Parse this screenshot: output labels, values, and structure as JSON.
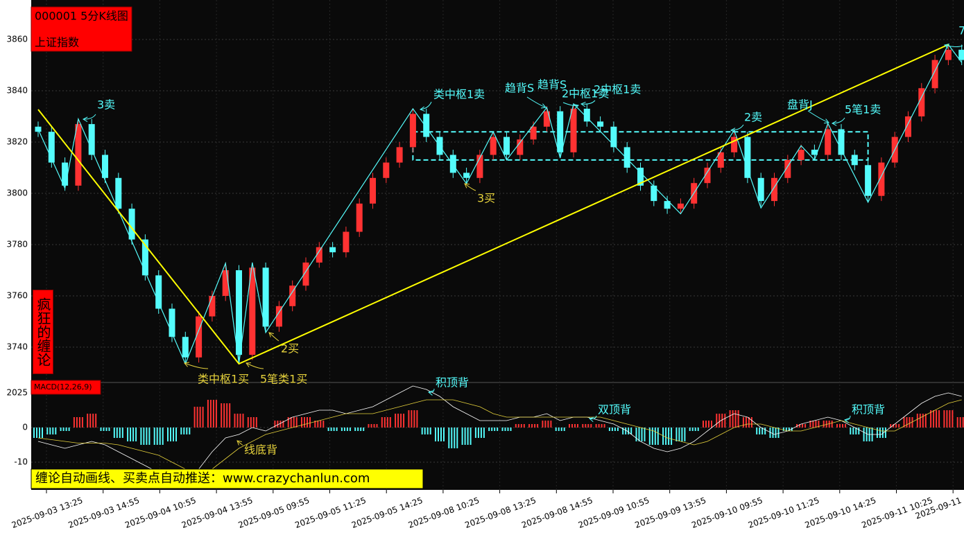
{
  "header": {
    "code_title": "000001 5分K线图",
    "name": "上证指数"
  },
  "side_label": "疯狂的缠论",
  "footer_banner": "缠论自动画线、买卖点自动推送：www.crazychanlun.com",
  "chart_data": [
    {
      "type": "candlestick",
      "open": [
        3826,
        3824,
        3812,
        3803,
        3827,
        3815,
        3806,
        3794,
        3782,
        3768,
        3755,
        3744,
        3736,
        3752,
        3760,
        3770,
        3737,
        3771,
        3748,
        3756,
        3764,
        3773,
        3779,
        3777,
        3785,
        3796,
        3806,
        3812,
        3818,
        3831,
        3822,
        3815,
        3808,
        3806,
        3815,
        3822,
        3815,
        3821,
        3826,
        3832,
        3816,
        3833,
        3828,
        3826,
        3818,
        3810,
        3803,
        3797,
        3794,
        3796,
        3804,
        3810,
        3816,
        3822,
        3806,
        3797,
        3806,
        3813,
        3817,
        3815,
        3825,
        3815,
        3811,
        3799,
        3812,
        3822,
        3830,
        3841,
        3852,
        3856
      ],
      "high": [
        3828,
        3826,
        3814,
        3829,
        3829,
        3817,
        3808,
        3796,
        3784,
        3770,
        3757,
        3746,
        3754,
        3762,
        3773,
        3772,
        3773,
        3773,
        3758,
        3766,
        3775,
        3781,
        3781,
        3787,
        3798,
        3808,
        3814,
        3820,
        3833,
        3833,
        3824,
        3817,
        3810,
        3817,
        3824,
        3824,
        3823,
        3828,
        3834,
        3834,
        3835,
        3835,
        3830,
        3828,
        3820,
        3812,
        3805,
        3799,
        3798,
        3806,
        3812,
        3818,
        3825,
        3824,
        3808,
        3808,
        3815,
        3819,
        3819,
        3827,
        3827,
        3817,
        3813,
        3814,
        3824,
        3832,
        3843,
        3854,
        3858,
        3858
      ],
      "low": [
        3822,
        3810,
        3801,
        3801,
        3813,
        3804,
        3792,
        3780,
        3766,
        3753,
        3742,
        3734,
        3734,
        3750,
        3758,
        3734,
        3735,
        3746,
        3746,
        3754,
        3762,
        3771,
        3775,
        3775,
        3783,
        3794,
        3804,
        3810,
        3816,
        3820,
        3813,
        3806,
        3804,
        3804,
        3813,
        3813,
        3813,
        3819,
        3824,
        3814,
        3814,
        3826,
        3824,
        3816,
        3808,
        3801,
        3795,
        3792,
        3792,
        3794,
        3802,
        3808,
        3814,
        3804,
        3795,
        3795,
        3804,
        3811,
        3813,
        3813,
        3813,
        3809,
        3797,
        3797,
        3810,
        3820,
        3828,
        3839,
        3850,
        3850
      ],
      "close": [
        3824,
        3812,
        3803,
        3827,
        3815,
        3806,
        3794,
        3782,
        3768,
        3755,
        3744,
        3736,
        3752,
        3760,
        3770,
        3737,
        3771,
        3748,
        3756,
        3764,
        3773,
        3779,
        3777,
        3785,
        3796,
        3806,
        3812,
        3818,
        3831,
        3822,
        3815,
        3808,
        3806,
        3815,
        3822,
        3815,
        3821,
        3826,
        3832,
        3816,
        3833,
        3828,
        3826,
        3818,
        3810,
        3803,
        3797,
        3794,
        3796,
        3804,
        3810,
        3816,
        3822,
        3806,
        3797,
        3806,
        3813,
        3817,
        3815,
        3825,
        3815,
        3811,
        3799,
        3812,
        3822,
        3830,
        3841,
        3852,
        3856,
        3852
      ],
      "up_color": "#ff3232",
      "down_color": "#54fcfc",
      "ylim": [
        3727.3,
        3875.4
      ],
      "yticks": [
        3740,
        3760,
        3780,
        3800,
        3820,
        3840,
        3860
      ],
      "grid": true,
      "x_labels": [
        "2025-09-03 13:25",
        "2025-09-03 14:55",
        "2025-09-04 10:55",
        "2025-09-04 13:55",
        "2025-09-05 09:55",
        "2025-09-05 11:25",
        "2025-09-05 14:25",
        "2025-09-08 10:25",
        "2025-09-08 13:25",
        "2025-09-08 14:55",
        "2025-09-09 10:55",
        "2025-09-09 13:55",
        "2025-09-10 09:55",
        "2025-09-10 11:25",
        "2025-09-10 14:25",
        "2025-09-11 10:25",
        "2025-09-11"
      ],
      "strokes": {
        "color": "#54fcfc",
        "x": [
          0,
          2,
          3,
          11,
          14,
          15,
          16,
          17,
          28,
          32,
          34,
          35,
          38,
          39,
          40,
          48,
          52,
          54,
          57,
          58,
          59,
          62,
          68,
          69
        ],
        "y": [
          3825,
          3802,
          3829,
          3733.5,
          3772.7,
          3733.5,
          3773,
          3745.7,
          3833,
          3803.8,
          3824,
          3813,
          3833.5,
          3813.8,
          3834.9,
          3792,
          3824.6,
          3794.3,
          3818.6,
          3813,
          3827.3,
          3796.5,
          3858,
          3851
        ]
      },
      "segments": {
        "color": "#ffff00",
        "x": [
          0,
          15,
          68
        ],
        "y": [
          3832.7,
          3733.5,
          3858
        ]
      },
      "box": {
        "from": 28,
        "to": 62,
        "low": 3813,
        "high": 3824,
        "color": "#54fcfc"
      },
      "annotations": [
        "3卖",
        "类中枢1卖",
        "趋背S",
        "趋背S",
        "2中枢1卖",
        "2中枢1卖",
        "3买",
        "2卖",
        "盘背J",
        "5笔1卖",
        "2买",
        "类中枢1买",
        "5笔类1买",
        "7"
      ]
    },
    {
      "type": "macd",
      "label": "MACD(12,26,9)",
      "top_label": "2025",
      "hist": [
        -3,
        -2,
        -1,
        3,
        4,
        -1,
        -3,
        -4,
        -5,
        -5,
        -4,
        -2,
        6,
        8,
        7,
        4,
        3,
        0,
        2,
        3,
        3,
        2,
        -1,
        -1,
        -1,
        1,
        3,
        4,
        5,
        -2,
        -4,
        -6,
        -5,
        -3,
        -1,
        -1,
        1,
        1,
        2,
        -1,
        1,
        1,
        1,
        -1,
        -2,
        -4,
        -5,
        -5,
        -4,
        -1,
        2,
        4,
        5,
        3,
        -2,
        -3,
        -1,
        1,
        2,
        2,
        1,
        -2,
        -4,
        -3,
        1,
        3,
        4,
        5,
        5,
        3
      ],
      "dif": [
        -4,
        -5,
        -6,
        -5,
        -4,
        -5,
        -7,
        -9,
        -11,
        -13,
        -15,
        -16,
        -12,
        -7,
        -3,
        -2,
        0,
        -1,
        1,
        3,
        4,
        5,
        5,
        4,
        5,
        6,
        8,
        10,
        12,
        11,
        9,
        6,
        4,
        2,
        2,
        2,
        3,
        3,
        4,
        2,
        3,
        3,
        2,
        1,
        -1,
        -4,
        -6,
        -7,
        -6,
        -4,
        -1,
        2,
        4,
        3,
        0,
        -2,
        -1,
        1,
        2,
        3,
        2,
        0,
        -2,
        -2,
        1,
        4,
        7,
        9,
        10,
        9
      ],
      "dea": [
        -3,
        -3.5,
        -4,
        -4.5,
        -4.5,
        -4.5,
        -5,
        -6,
        -7,
        -8,
        -10,
        -12,
        -13,
        -12,
        -9,
        -6,
        -4,
        -2,
        -1,
        0,
        1,
        2,
        3,
        4,
        4,
        4,
        5,
        6,
        7,
        8,
        8,
        8,
        7,
        6,
        4,
        3,
        3,
        3,
        3,
        3,
        3,
        3,
        3,
        2,
        1,
        0,
        -1,
        -3,
        -4,
        -5,
        -4,
        -2,
        0,
        1,
        1,
        0,
        -1,
        -1,
        0,
        1,
        2,
        1,
        0,
        -1,
        -1,
        1,
        3,
        5,
        7,
        8
      ],
      "dif_color": "#ffffff",
      "dea_color": "#e6d23c",
      "up_color": "#ff3232",
      "down_color": "#54fcfc",
      "ylim": [
        -17.6,
        12.2
      ],
      "yticks": [
        -10,
        0
      ],
      "annotations": [
        "积顶背",
        "双顶背",
        "积顶背",
        "线底背"
      ]
    }
  ]
}
